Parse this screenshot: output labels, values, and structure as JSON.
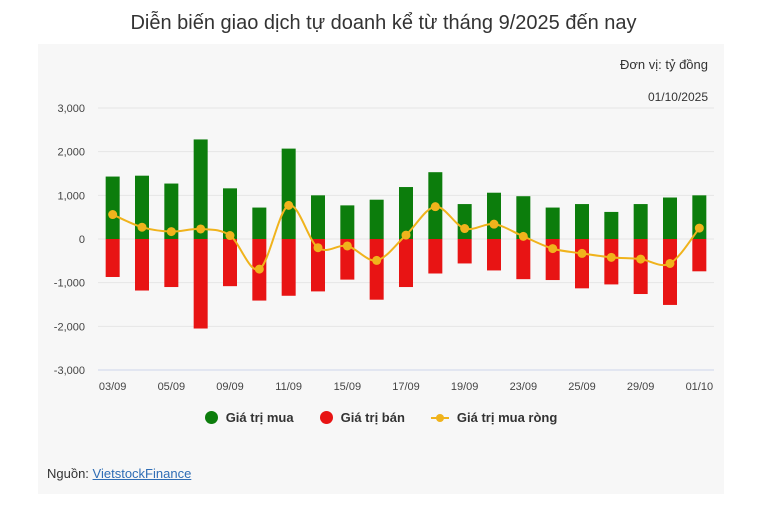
{
  "title": "Diễn biến giao dịch tự doanh kể từ tháng 9/2025 đến nay",
  "unit_label": "Đơn vị: tỷ đồng",
  "date_label": "01/10/2025",
  "source_prefix": "Nguồn: ",
  "source_link": "VietstockFinance",
  "colors": {
    "buy": "#0c7d0c",
    "sell": "#e81414",
    "net": "#f0b31c"
  },
  "chart_data": {
    "type": "bar",
    "categories": [
      "03/09",
      "04/09",
      "05/09",
      "08/09",
      "09/09",
      "10/09",
      "11/09",
      "12/09",
      "15/09",
      "16/09",
      "17/09",
      "18/09",
      "19/09",
      "22/09",
      "23/09",
      "24/09",
      "25/09",
      "26/09",
      "29/09",
      "30/09",
      "01/10"
    ],
    "x_tick_labels": [
      "03/09",
      "",
      "05/09",
      "",
      "09/09",
      "",
      "11/09",
      "",
      "15/09",
      "",
      "17/09",
      "",
      "19/09",
      "",
      "23/09",
      "",
      "25/09",
      "",
      "29/09",
      "",
      "01/10"
    ],
    "series": [
      {
        "name": "Giá trị mua",
        "type": "bar",
        "values": [
          1430,
          1450,
          1270,
          2280,
          1160,
          720,
          2070,
          1000,
          770,
          900,
          1190,
          1530,
          800,
          1060,
          980,
          720,
          800,
          620,
          800,
          950,
          1000
        ]
      },
      {
        "name": "Giá trị bán",
        "type": "bar",
        "values": [
          -870,
          -1180,
          -1100,
          -2050,
          -1080,
          -1410,
          -1300,
          -1200,
          -930,
          -1390,
          -1100,
          -790,
          -560,
          -720,
          -920,
          -940,
          -1130,
          -1040,
          -1260,
          -1510,
          -740
        ]
      },
      {
        "name": "Giá trị mua ròng",
        "type": "line",
        "values": [
          560,
          270,
          170,
          230,
          80,
          -690,
          770,
          -200,
          -160,
          -490,
          90,
          740,
          240,
          340,
          60,
          -220,
          -330,
          -420,
          -460,
          -560,
          250
        ]
      }
    ],
    "y_ticks": [
      "3,000",
      "2,000",
      "1,000",
      "0",
      "-1,000",
      "-2,000",
      "-3,000"
    ],
    "ylim": [
      -3000,
      3000
    ],
    "grid": true,
    "legend_position": "bottom"
  }
}
